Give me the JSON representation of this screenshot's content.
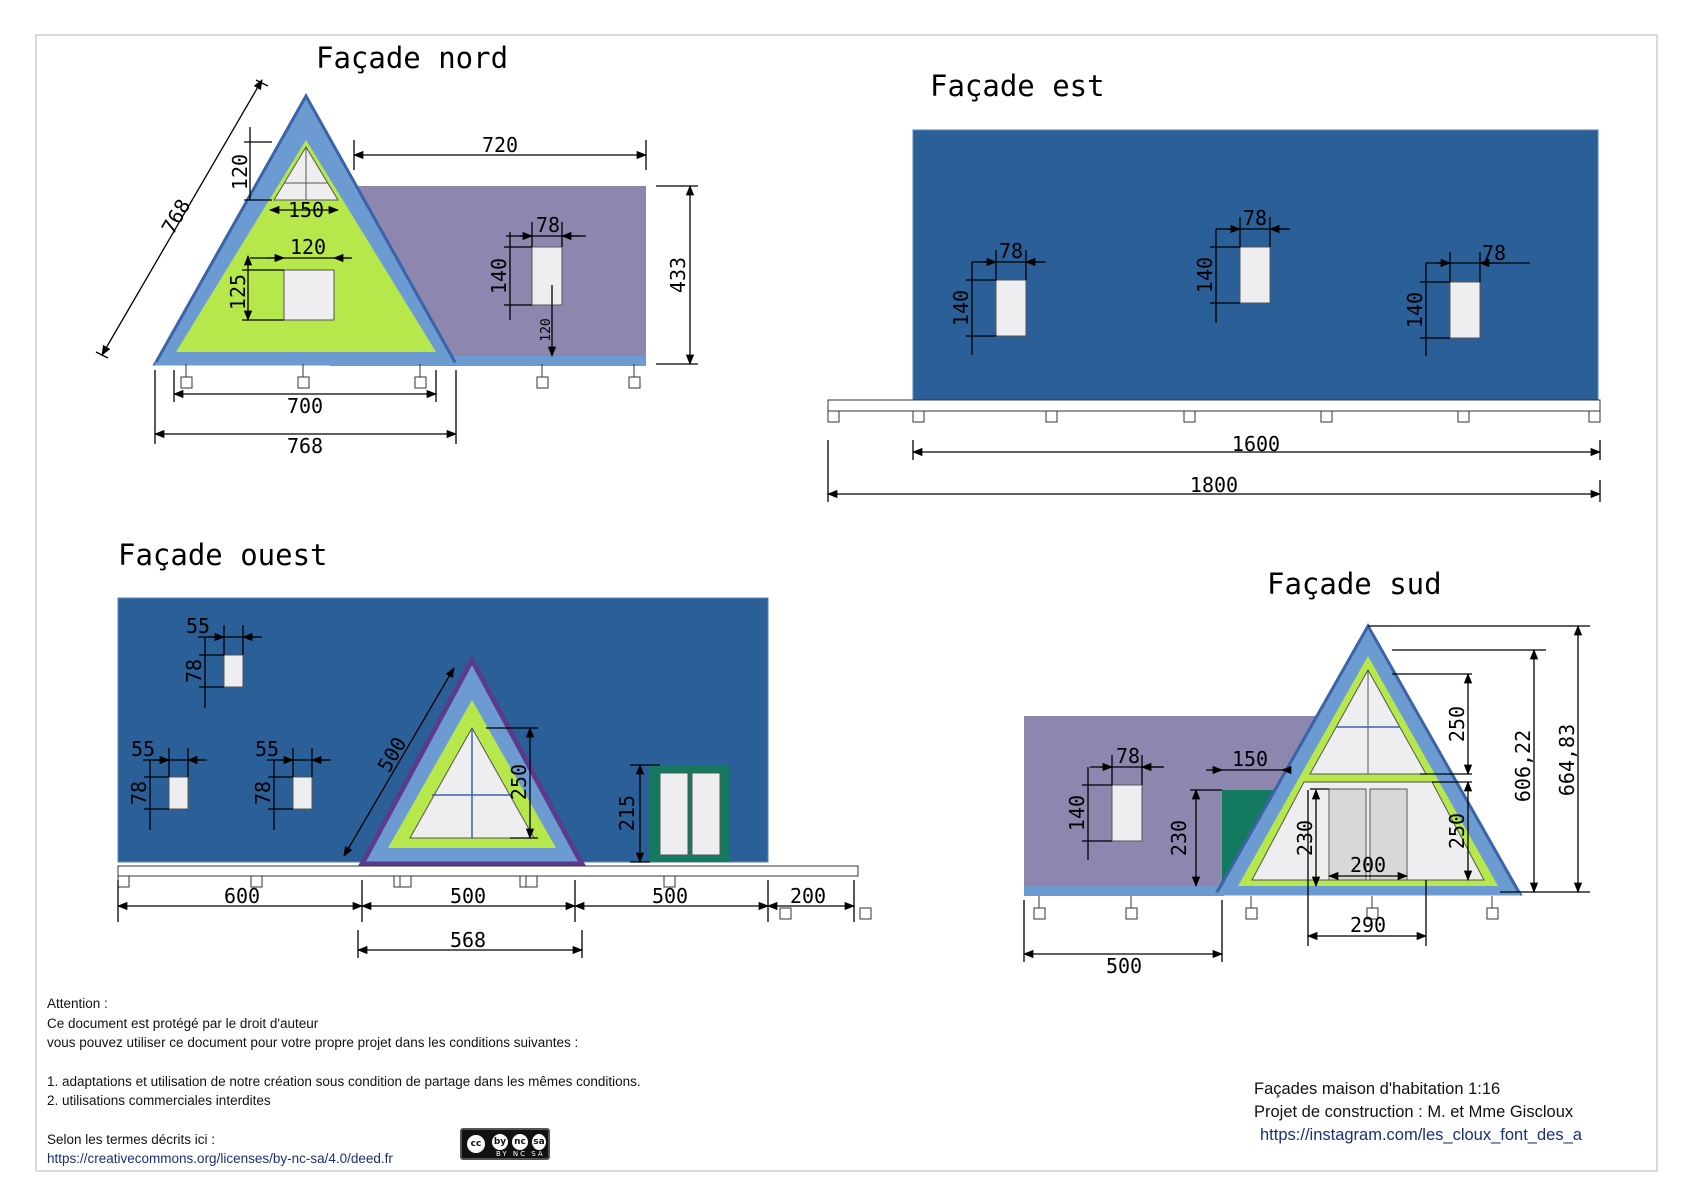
{
  "colors": {
    "wall_blue": "#2b5f98",
    "wall_purple": "#8d86ae",
    "frame_blue": "#6c9bd2",
    "frame_dark": "#3a63a8",
    "frame_violet": "#5a3b8c",
    "glass_green": "#b6e84b",
    "window_fill": "#eeeef0",
    "door_green": "#137a5f",
    "base_line": "#6c9bd2"
  },
  "nord": {
    "title": "Façade nord",
    "dims": {
      "roof_slope": "768",
      "top_window_height": "120",
      "top_window_width": "150",
      "mid_window_width": "120",
      "mid_window_height": "125",
      "wing_width": "720",
      "wing_window_width": "78",
      "wing_window_height": "140",
      "wing_window_sill": "120",
      "wall_height": "433",
      "base_inner": "700",
      "base_outer": "768"
    }
  },
  "est": {
    "title": "Façade est",
    "dims": {
      "win1_width": "78",
      "win1_height": "140",
      "win2_width": "78",
      "win2_height": "140",
      "win3_width": "78",
      "win3_height": "140",
      "inner_length": "1600",
      "outer_length": "1800"
    }
  },
  "ouest": {
    "title": "Façade ouest",
    "dims": {
      "w1_width": "55",
      "w1_height": "78",
      "w2_width": "55",
      "w2_height": "78",
      "w3_width": "55",
      "w3_height": "78",
      "gable_slope": "500",
      "gable_window_height": "250",
      "door_height": "215",
      "seg1": "600",
      "seg2": "500",
      "seg3": "500",
      "seg4": "200",
      "gable_base": "568"
    }
  },
  "sud": {
    "title": "Façade sud",
    "dims": {
      "wing_window_width": "78",
      "wing_window_height": "140",
      "green_door_width": "150",
      "green_door_height": "230",
      "upper_glass_height": "250",
      "lower_glass_height": "250",
      "inner_height": "606,22",
      "outer_height": "664,83",
      "door_height": "230",
      "door_width": "200",
      "door_opening": "290",
      "wing_length": "500"
    }
  },
  "notice": {
    "l1": "Attention :",
    "l2": "Ce document est protégé par le droit d'auteur",
    "l3": "vous pouvez utiliser ce document pour votre propre projet dans les conditions suivantes :",
    "l4": "1. adaptations et utilisation de notre création sous condition de partage dans les mêmes conditions.",
    "l5": "2. utilisations commerciales interdites",
    "l6": "Selon les termes décrits ici :",
    "link": "https://creativecommons.org/licenses/by-nc-sa/4.0/deed.fr"
  },
  "license_badge": {
    "symbols": [
      "cc",
      "by",
      "nc",
      "sa"
    ],
    "tags": "BY NC SA"
  },
  "credits": {
    "line1": "Façades maison d'habitation 1:16",
    "line2": "Projet de construction :  M. et Mme Giscloux",
    "line3": "https://instagram.com/les_cloux_font_des_a"
  }
}
